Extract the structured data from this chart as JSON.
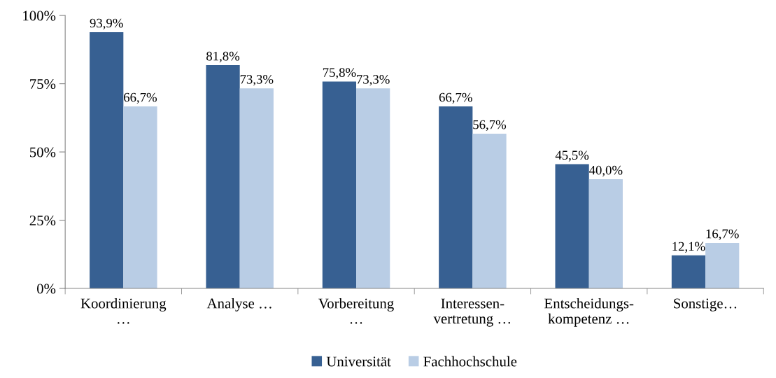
{
  "chart_data": {
    "type": "bar",
    "categories": [
      "Koordinierung\n…",
      "Analyse …",
      "Vorbereitung\n…",
      "Interessen-\nvertretung …",
      "Entscheidungs-\nkompetenz …",
      "Sonstige…"
    ],
    "series": [
      {
        "name": "Universität",
        "color": "#376092",
        "values": [
          93.9,
          81.8,
          75.8,
          66.7,
          45.5,
          12.1
        ],
        "value_labels": [
          "93,9%",
          "81,8%",
          "75,8%",
          "66,7%",
          "45,5%",
          "12,1%"
        ]
      },
      {
        "name": "Fachhochschule",
        "color": "#b9cde5",
        "values": [
          66.7,
          73.3,
          73.3,
          56.7,
          40.0,
          16.7
        ],
        "value_labels": [
          "66,7%",
          "73,3%",
          "73,3%",
          "56,7%",
          "40,0%",
          "16,7%"
        ]
      }
    ],
    "ylim": [
      0,
      100
    ],
    "yticks": [
      {
        "value": 0,
        "label": "0%"
      },
      {
        "value": 25,
        "label": "25%"
      },
      {
        "value": 50,
        "label": "50%"
      },
      {
        "value": 75,
        "label": "75%"
      },
      {
        "value": 100,
        "label": "100%"
      }
    ],
    "grid": false,
    "legend": "bottom"
  }
}
